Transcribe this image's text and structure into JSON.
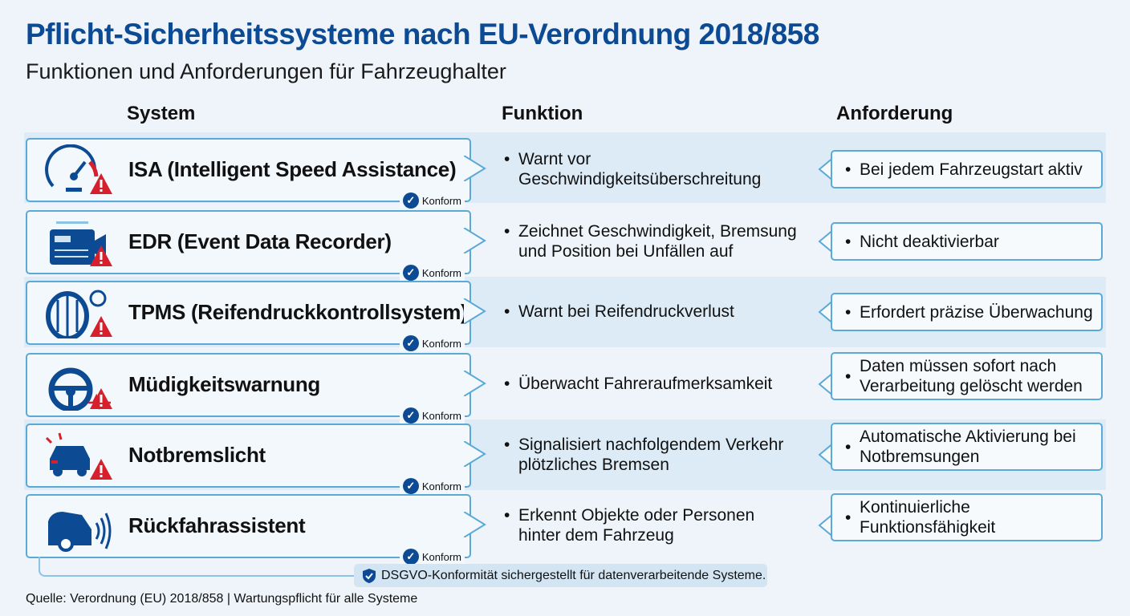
{
  "title": "Pflicht-Sicherheitssysteme nach EU-Verordnung 2018/858",
  "subtitle": "Funktionen und Anforderungen für Fahrzeughalter",
  "columns": [
    "System",
    "Funktion",
    "Anforderung"
  ],
  "badge": "Konform",
  "rows": [
    {
      "icon": "speedometer-warning-icon",
      "name": "ISA (Intelligent Speed Assistance)",
      "function": [
        "Warnt vor",
        "Geschwindigkeitsüberschreitung"
      ],
      "requirement": [
        "Bei jedem Fahrzeugstart aktiv"
      ]
    },
    {
      "icon": "data-recorder-camera-icon",
      "name": "EDR (Event Data Recorder)",
      "function": [
        "Zeichnet Geschwindigkeit, Bremsung",
        "und Position bei Unfällen auf"
      ],
      "requirement": [
        "Nicht deaktivierbar"
      ]
    },
    {
      "icon": "tire-pressure-warning-icon",
      "name": "TPMS (Reifendruckkontrollsystem)",
      "function": [
        "Warnt bei Reifendruckverlust"
      ],
      "requirement": [
        "Erfordert präzise Überwachung"
      ]
    },
    {
      "icon": "steering-wheel-warning-icon",
      "name": "Müdigkeitswarnung",
      "function": [
        "Überwacht Fahreraufmerksamkeit"
      ],
      "requirement": [
        "Daten müssen sofort nach",
        "Verarbeitung gelöscht werden"
      ]
    },
    {
      "icon": "car-brake-light-warning-icon",
      "name": "Notbremslicht",
      "function": [
        "Signalisiert nachfolgendem Verkehr",
        "plötzliches Bremsen"
      ],
      "requirement": [
        "Automatische Aktivierung bei",
        "Notbremsungen"
      ]
    },
    {
      "icon": "car-rear-sensor-icon",
      "name": "Rückfahrassistent",
      "function": [
        "Erkennt Objekte oder Personen",
        "hinter dem Fahrzeug"
      ],
      "requirement": [
        "Kontinuierliche",
        "Funktionsfähigkeit"
      ]
    }
  ],
  "note": "DSGVO-Konformität sichergestellt für datenverarbeitende Systeme.",
  "source": "Quelle: Verordnung (EU) 2018/858 | Wartungspflicht für alle Systeme",
  "colors": {
    "title": "#0d4a94",
    "border": "#5aa9d6",
    "warning": "#d7202e",
    "band": "#dcebf6"
  }
}
